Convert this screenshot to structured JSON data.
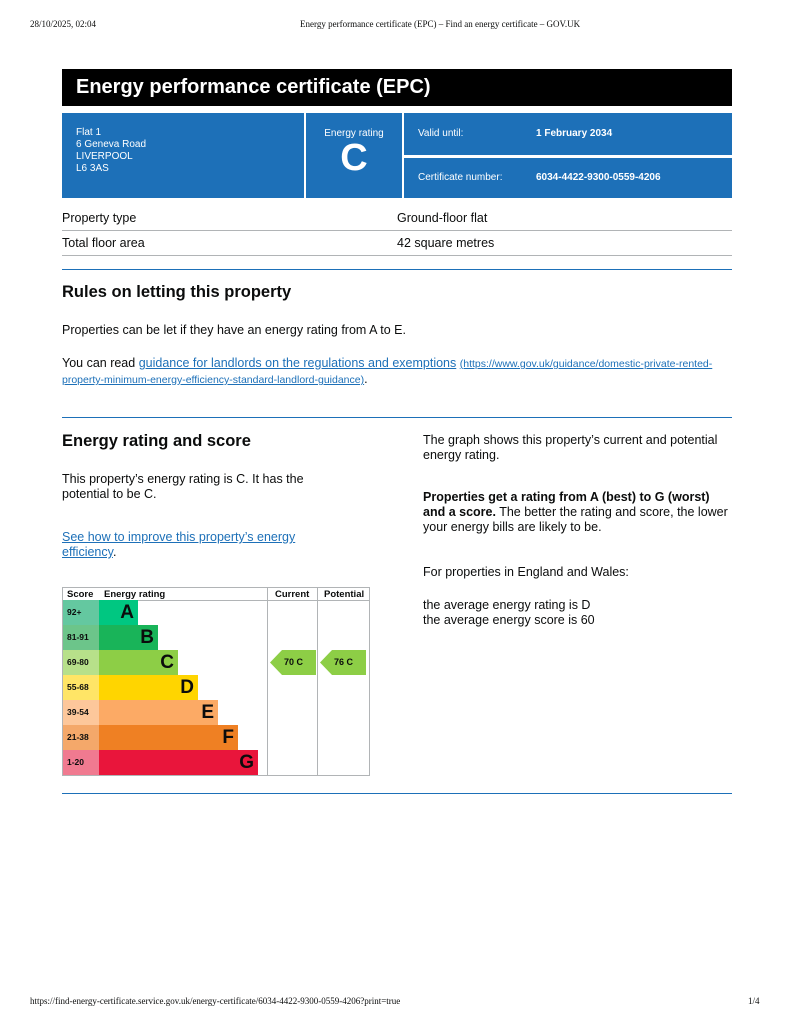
{
  "browser": {
    "datetime": "28/10/2025, 02:04",
    "page_title": "Energy performance certificate (EPC) – Find an energy certificate – GOV.UK",
    "url": "https://find-energy-certificate.service.gov.uk/energy-certificate/6034-4422-9300-0559-4206?print=true",
    "page_num": "1/4"
  },
  "title": "Energy performance certificate (EPC)",
  "address": [
    "Flat 1",
    "6 Geneva Road",
    "LIVERPOOL",
    "L6 3AS"
  ],
  "rating": {
    "label": "Energy rating",
    "value": "C"
  },
  "valid": {
    "label": "Valid until:",
    "value": "1 February 2034"
  },
  "cert": {
    "label": "Certificate number:",
    "value": "6034-4422-9300-0559-4206"
  },
  "props": [
    {
      "k": "Property type",
      "v": "Ground-floor flat"
    },
    {
      "k": "Total floor area",
      "v": "42 square metres"
    }
  ],
  "rules": {
    "heading": "Rules on letting this property",
    "p1": "Properties can be let if they have an energy rating from A to E.",
    "p2_pre": "You can read ",
    "link": "guidance for landlords on the regulations and exemptions",
    "url": "(https://www.gov.uk/guidance/domestic-private-rented-property-minimum-energy-efficiency-standard-landlord-guidance)",
    "p2_post": "."
  },
  "score": {
    "heading": "Energy rating and score",
    "p1": "This property’s energy rating is C. It has the potential to be C.",
    "link": "See how to improve this property’s energy efficiency",
    "link_post": ".",
    "r1": "The graph shows this property’s current and potential energy rating.",
    "r2_bold": "Properties get a rating from A (best) to G (worst) and a score.",
    "r2": " The better the rating and score, the lower your energy bills are likely to be.",
    "r3": "For properties in England and Wales:",
    "r4": "the average energy rating is D",
    "r5": "the average energy score is 60"
  },
  "chart_data": {
    "type": "table",
    "headers": [
      "Score",
      "Energy rating",
      "Current",
      "Potential"
    ],
    "bands": [
      {
        "score": "92+",
        "letter": "A",
        "color": "#00c781",
        "light": "#64c8a0"
      },
      {
        "score": "81-91",
        "letter": "B",
        "color": "#19b459",
        "light": "#6cc58a"
      },
      {
        "score": "69-80",
        "letter": "C",
        "color": "#8dce46",
        "light": "#b7e08a"
      },
      {
        "score": "55-68",
        "letter": "D",
        "color": "#ffd500",
        "light": "#ffe566"
      },
      {
        "score": "39-54",
        "letter": "E",
        "color": "#fcaa65",
        "light": "#fdc79b"
      },
      {
        "score": "21-38",
        "letter": "F",
        "color": "#ef8023",
        "light": "#f4a86a"
      },
      {
        "score": "1-20",
        "letter": "G",
        "color": "#e9153b",
        "light": "#f07a90"
      }
    ],
    "current": {
      "score": 70,
      "letter": "C",
      "label": "70  C"
    },
    "potential": {
      "score": 76,
      "letter": "C",
      "label": "76  C"
    }
  }
}
